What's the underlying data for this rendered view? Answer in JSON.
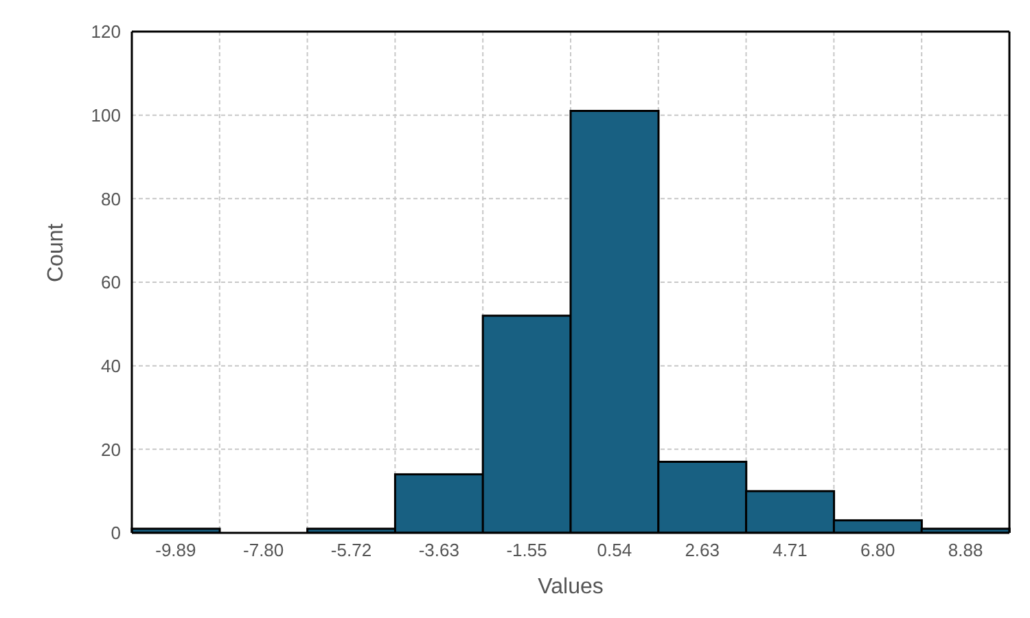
{
  "chart_data": {
    "type": "bar",
    "xlabel": "Values",
    "ylabel": "Count",
    "categories": [
      "-9.89",
      "-7.80",
      "-5.72",
      "-3.63",
      "-1.55",
      "0.54",
      "2.63",
      "4.71",
      "6.80",
      "8.88"
    ],
    "values": [
      1,
      0,
      1,
      14,
      52,
      101,
      17,
      10,
      3,
      1
    ],
    "color": "#186082",
    "ylim": [
      0,
      120
    ],
    "yticks": [
      0,
      20,
      40,
      60,
      80,
      100,
      120
    ],
    "grid": true
  }
}
